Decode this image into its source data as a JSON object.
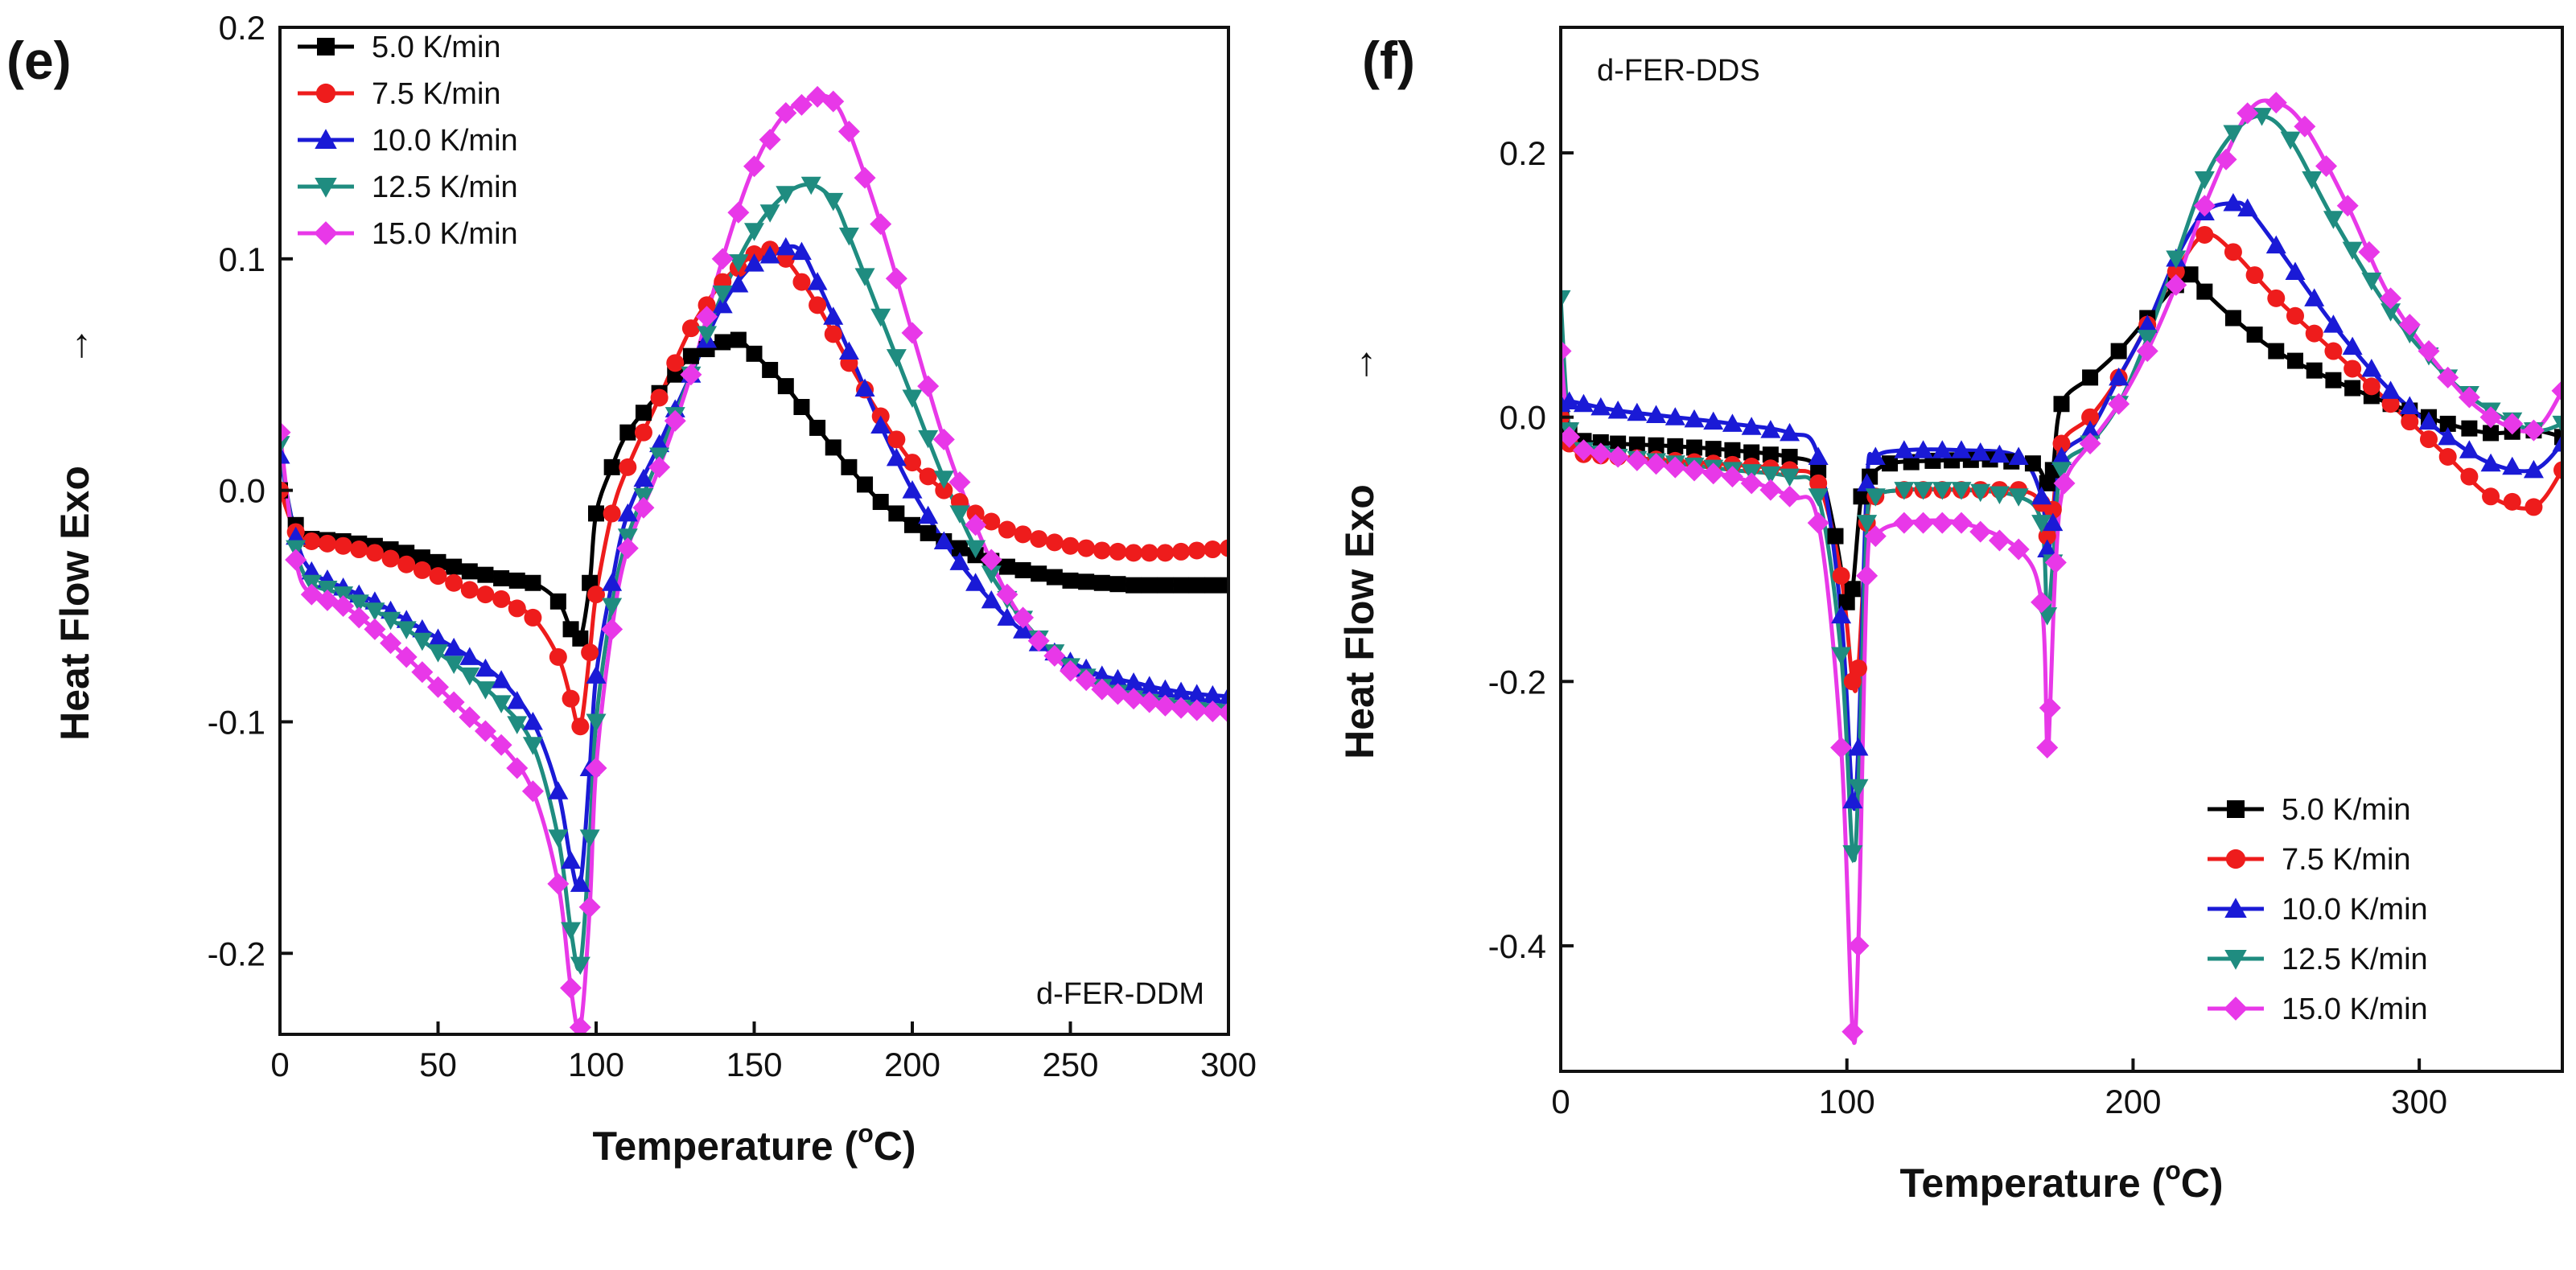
{
  "chart_data": [
    {
      "panel_label": "(e)",
      "type": "line",
      "title": "",
      "xlabel": "Temperature (",
      "xlabel_sup": "o",
      "xlabel_end": "C)",
      "ylabel_prefix": "Heat Flow   Exo",
      "ylabel_arrow": "→",
      "annotation": "d-FER-DDM",
      "legend_position": "top-left",
      "xlim": [
        0,
        300
      ],
      "ylim": [
        -0.235,
        0.2
      ],
      "xticks": [
        0,
        50,
        100,
        150,
        200,
        250,
        300
      ],
      "yticks": [
        -0.2,
        -0.1,
        0.0,
        0.1,
        0.2
      ],
      "ytick_labels": [
        "-0.2",
        "-0.1",
        "0.0",
        "0.1",
        "0.2"
      ],
      "grid": false,
      "series": [
        {
          "name": "5.0 K/min",
          "color": "#000000",
          "marker": "square",
          "x": [
            0,
            5,
            10,
            20,
            30,
            40,
            50,
            60,
            70,
            80,
            88,
            92,
            95,
            98,
            100,
            105,
            110,
            120,
            130,
            140,
            145,
            150,
            160,
            170,
            180,
            190,
            200,
            210,
            220,
            230,
            240,
            250,
            260,
            270,
            280,
            290,
            300
          ],
          "y": [
            0.0,
            -0.015,
            -0.021,
            -0.022,
            -0.024,
            -0.027,
            -0.031,
            -0.035,
            -0.038,
            -0.04,
            -0.048,
            -0.06,
            -0.064,
            -0.04,
            -0.01,
            0.01,
            0.025,
            0.042,
            0.058,
            0.064,
            0.065,
            0.059,
            0.045,
            0.027,
            0.01,
            -0.005,
            -0.015,
            -0.022,
            -0.028,
            -0.033,
            -0.036,
            -0.039,
            -0.04,
            -0.041,
            -0.041,
            -0.041,
            -0.041
          ]
        },
        {
          "name": "7.5 K/min",
          "color": "#ee1c1c",
          "marker": "circle",
          "x": [
            0,
            5,
            10,
            20,
            30,
            40,
            50,
            60,
            70,
            80,
            88,
            92,
            95,
            98,
            100,
            105,
            110,
            120,
            130,
            140,
            150,
            155,
            160,
            170,
            180,
            190,
            200,
            210,
            220,
            230,
            240,
            250,
            260,
            270,
            280,
            290,
            300
          ],
          "y": [
            0.0,
            -0.018,
            -0.022,
            -0.024,
            -0.027,
            -0.032,
            -0.037,
            -0.043,
            -0.047,
            -0.055,
            -0.072,
            -0.09,
            -0.102,
            -0.07,
            -0.045,
            -0.01,
            0.01,
            0.04,
            0.07,
            0.09,
            0.102,
            0.104,
            0.1,
            0.08,
            0.055,
            0.032,
            0.012,
            0.0,
            -0.01,
            -0.017,
            -0.021,
            -0.024,
            -0.026,
            -0.027,
            -0.027,
            -0.026,
            -0.025
          ]
        },
        {
          "name": "10.0 K/min",
          "color": "#1a1ad6",
          "marker": "triangle-up",
          "x": [
            0,
            5,
            10,
            20,
            30,
            40,
            50,
            60,
            70,
            80,
            88,
            92,
            95,
            98,
            100,
            105,
            110,
            120,
            130,
            140,
            150,
            160,
            165,
            170,
            180,
            190,
            200,
            210,
            220,
            230,
            240,
            250,
            260,
            270,
            280,
            290,
            300
          ],
          "y": [
            0.015,
            -0.02,
            -0.035,
            -0.042,
            -0.048,
            -0.056,
            -0.064,
            -0.072,
            -0.082,
            -0.1,
            -0.13,
            -0.16,
            -0.17,
            -0.12,
            -0.08,
            -0.04,
            -0.01,
            0.02,
            0.05,
            0.08,
            0.098,
            0.105,
            0.103,
            0.09,
            0.06,
            0.028,
            0.0,
            -0.022,
            -0.04,
            -0.055,
            -0.066,
            -0.074,
            -0.08,
            -0.083,
            -0.086,
            -0.088,
            -0.089
          ]
        },
        {
          "name": "12.5 K/min",
          "color": "#1f8c80",
          "marker": "triangle-down",
          "x": [
            0,
            5,
            10,
            20,
            30,
            40,
            50,
            60,
            70,
            80,
            88,
            92,
            95,
            98,
            100,
            105,
            110,
            120,
            130,
            140,
            150,
            160,
            168,
            175,
            180,
            190,
            200,
            210,
            220,
            230,
            240,
            250,
            260,
            270,
            280,
            290,
            300
          ],
          "y": [
            0.02,
            -0.025,
            -0.04,
            -0.045,
            -0.052,
            -0.06,
            -0.07,
            -0.08,
            -0.092,
            -0.11,
            -0.15,
            -0.19,
            -0.205,
            -0.15,
            -0.1,
            -0.05,
            -0.02,
            0.015,
            0.05,
            0.085,
            0.112,
            0.128,
            0.132,
            0.125,
            0.11,
            0.075,
            0.04,
            0.005,
            -0.025,
            -0.047,
            -0.064,
            -0.076,
            -0.085,
            -0.09,
            -0.093,
            -0.095,
            -0.096
          ]
        },
        {
          "name": "15.0 K/min",
          "color": "#e838e8",
          "marker": "diamond",
          "x": [
            0,
            5,
            10,
            20,
            30,
            40,
            50,
            60,
            70,
            80,
            88,
            92,
            95,
            98,
            100,
            105,
            110,
            120,
            130,
            140,
            150,
            160,
            170,
            175,
            180,
            190,
            200,
            210,
            220,
            230,
            240,
            250,
            260,
            270,
            280,
            290,
            300
          ],
          "y": [
            0.025,
            -0.03,
            -0.045,
            -0.05,
            -0.06,
            -0.072,
            -0.085,
            -0.098,
            -0.11,
            -0.13,
            -0.17,
            -0.215,
            -0.232,
            -0.18,
            -0.12,
            -0.06,
            -0.025,
            0.01,
            0.05,
            0.1,
            0.14,
            0.163,
            0.17,
            0.168,
            0.155,
            0.115,
            0.068,
            0.022,
            -0.015,
            -0.045,
            -0.065,
            -0.078,
            -0.086,
            -0.09,
            -0.093,
            -0.095,
            -0.096
          ]
        }
      ]
    },
    {
      "panel_label": "(f)",
      "type": "line",
      "title": "",
      "xlabel": "Temperature (",
      "xlabel_sup": "o",
      "xlabel_end": "C)",
      "ylabel_prefix": "Heat Flow   Exo",
      "ylabel_arrow": "→",
      "annotation": "d-FER-DDS",
      "legend_position": "bottom-right",
      "xlim": [
        0,
        350
      ],
      "ylim": [
        -0.495,
        0.295
      ],
      "xticks": [
        0,
        100,
        200,
        300
      ],
      "yticks": [
        -0.4,
        -0.2,
        0.0,
        0.2
      ],
      "ytick_labels": [
        "-0.4",
        "-0.2",
        "0.0",
        "0.2"
      ],
      "grid": false,
      "series": [
        {
          "name": "5.0 K/min",
          "color": "#000000",
          "marker": "square",
          "x": [
            0,
            3,
            8,
            20,
            40,
            60,
            80,
            90,
            96,
            100,
            102,
            105,
            108,
            115,
            130,
            150,
            165,
            170,
            172,
            175,
            185,
            195,
            205,
            215,
            220,
            225,
            235,
            250,
            270,
            290,
            310,
            325,
            340,
            350
          ],
          "y": [
            0.0,
            -0.01,
            -0.018,
            -0.02,
            -0.022,
            -0.025,
            -0.03,
            -0.04,
            -0.09,
            -0.14,
            -0.13,
            -0.06,
            -0.045,
            -0.035,
            -0.033,
            -0.032,
            -0.035,
            -0.05,
            -0.04,
            0.01,
            0.03,
            0.05,
            0.075,
            0.1,
            0.108,
            0.095,
            0.075,
            0.05,
            0.028,
            0.01,
            -0.005,
            -0.012,
            -0.01,
            -0.015
          ]
        },
        {
          "name": "7.5 K/min",
          "color": "#ee1c1c",
          "marker": "circle",
          "x": [
            0,
            3,
            8,
            20,
            40,
            60,
            80,
            90,
            98,
            102,
            104,
            107,
            110,
            120,
            140,
            160,
            168,
            170,
            172,
            175,
            185,
            195,
            205,
            215,
            225,
            235,
            250,
            270,
            290,
            310,
            325,
            340,
            350
          ],
          "y": [
            0.0,
            -0.02,
            -0.028,
            -0.03,
            -0.033,
            -0.036,
            -0.04,
            -0.05,
            -0.12,
            -0.2,
            -0.19,
            -0.08,
            -0.06,
            -0.055,
            -0.055,
            -0.055,
            -0.065,
            -0.09,
            -0.07,
            -0.02,
            0.0,
            0.03,
            0.07,
            0.11,
            0.138,
            0.125,
            0.09,
            0.05,
            0.01,
            -0.03,
            -0.06,
            -0.068,
            -0.04
          ]
        },
        {
          "name": "10.0 K/min",
          "color": "#1a1ad6",
          "marker": "triangle-up",
          "x": [
            0,
            3,
            8,
            20,
            40,
            60,
            80,
            90,
            98,
            102,
            104,
            107,
            110,
            120,
            140,
            160,
            168,
            170,
            172,
            175,
            185,
            195,
            205,
            215,
            225,
            235,
            240,
            250,
            270,
            290,
            310,
            325,
            340,
            350
          ],
          "y": [
            0.01,
            0.012,
            0.01,
            0.005,
            0.0,
            -0.005,
            -0.012,
            -0.03,
            -0.15,
            -0.29,
            -0.25,
            -0.05,
            -0.03,
            -0.025,
            -0.025,
            -0.03,
            -0.06,
            -0.1,
            -0.08,
            -0.03,
            -0.01,
            0.03,
            0.07,
            0.12,
            0.155,
            0.162,
            0.158,
            0.13,
            0.07,
            0.02,
            -0.015,
            -0.035,
            -0.04,
            -0.02
          ]
        },
        {
          "name": "12.5 K/min",
          "color": "#1f8c80",
          "marker": "triangle-down",
          "x": [
            0,
            3,
            8,
            20,
            40,
            60,
            80,
            90,
            98,
            102,
            104,
            107,
            110,
            120,
            140,
            160,
            168,
            170,
            172,
            175,
            185,
            195,
            205,
            215,
            225,
            235,
            245,
            255,
            270,
            290,
            310,
            325,
            340,
            350
          ],
          "y": [
            0.09,
            -0.01,
            -0.025,
            -0.03,
            -0.035,
            -0.04,
            -0.045,
            -0.06,
            -0.18,
            -0.33,
            -0.28,
            -0.08,
            -0.06,
            -0.055,
            -0.055,
            -0.06,
            -0.08,
            -0.15,
            -0.11,
            -0.04,
            -0.02,
            0.01,
            0.06,
            0.12,
            0.18,
            0.215,
            0.228,
            0.21,
            0.15,
            0.08,
            0.03,
            0.005,
            -0.01,
            -0.005
          ]
        },
        {
          "name": "15.0 K/min",
          "color": "#e838e8",
          "marker": "diamond",
          "x": [
            0,
            3,
            8,
            20,
            40,
            60,
            80,
            90,
            98,
            102,
            104,
            107,
            110,
            120,
            140,
            160,
            168,
            170,
            171,
            173,
            176,
            185,
            195,
            205,
            215,
            225,
            240,
            250,
            260,
            275,
            290,
            310,
            325,
            340,
            350
          ],
          "y": [
            0.05,
            -0.015,
            -0.025,
            -0.03,
            -0.038,
            -0.045,
            -0.06,
            -0.08,
            -0.25,
            -0.465,
            -0.4,
            -0.12,
            -0.09,
            -0.08,
            -0.08,
            -0.1,
            -0.14,
            -0.25,
            -0.22,
            -0.11,
            -0.05,
            -0.02,
            0.01,
            0.05,
            0.1,
            0.16,
            0.23,
            0.238,
            0.22,
            0.16,
            0.09,
            0.03,
            0.0,
            -0.01,
            0.02
          ]
        }
      ]
    }
  ]
}
